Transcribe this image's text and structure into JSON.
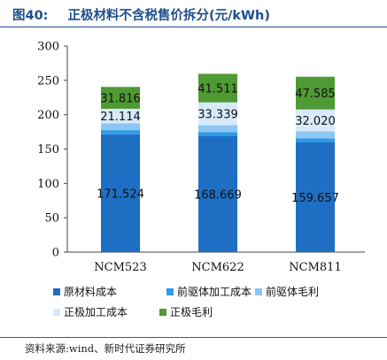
{
  "figure": {
    "number": "图40:",
    "title": "正极材料不含税售价拆分(元/kWh)",
    "source": "资料来源:wind、新时代证券研究所"
  },
  "chart_data": {
    "type": "bar",
    "stacked": true,
    "categories": [
      "NCM523",
      "NCM622",
      "NCM811"
    ],
    "series": [
      {
        "name": "原材料成本",
        "values": [
          171.524,
          168.669,
          159.657
        ],
        "color": "#1e6fc3",
        "labels": [
          "171.524",
          "168.669",
          "159.657"
        ]
      },
      {
        "name": "前驱体加工成本",
        "values": [
          6.0,
          6.0,
          6.0
        ],
        "color": "#2e9be6",
        "labels": [
          null,
          null,
          null
        ]
      },
      {
        "name": "前驱体毛利",
        "values": [
          10.0,
          10.0,
          10.0
        ],
        "color": "#8cc6f2",
        "labels": [
          null,
          null,
          null
        ]
      },
      {
        "name": "正极加工成本",
        "values": [
          21.114,
          33.339,
          32.02
        ],
        "color": "#d7eafa",
        "labels": [
          "21.114",
          "33.339",
          "32.020"
        ]
      },
      {
        "name": "正极毛利",
        "values": [
          31.816,
          41.511,
          47.585
        ],
        "color": "#4f9a33",
        "labels": [
          "31.816",
          "41.511",
          "47.585"
        ]
      }
    ],
    "ylim": [
      0,
      300
    ],
    "yticks": [
      0,
      50,
      100,
      150,
      200,
      250,
      300
    ],
    "grid": false,
    "legend_position": "bottom"
  }
}
